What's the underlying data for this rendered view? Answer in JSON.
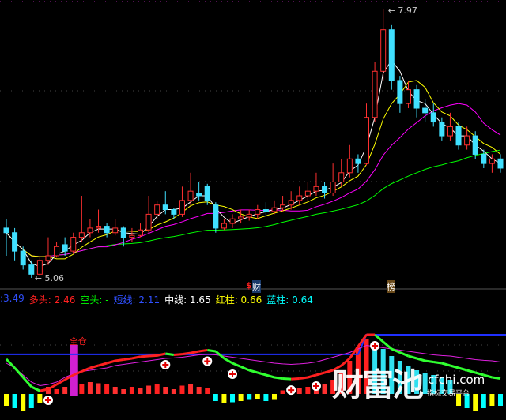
{
  "chart_data": {
    "type": "candlestick",
    "price_range": [
      5.06,
      7.97
    ],
    "max_label": "7.97",
    "min_label": "5.06",
    "candles": [
      [
        5.6,
        5.55,
        5.7,
        5.3
      ],
      [
        5.55,
        5.35,
        5.6,
        5.25
      ],
      [
        5.35,
        5.2,
        5.4,
        5.15
      ],
      [
        5.2,
        5.1,
        5.25,
        5.06
      ],
      [
        5.1,
        5.25,
        5.3,
        5.08
      ],
      [
        5.25,
        5.3,
        5.5,
        5.2
      ],
      [
        5.3,
        5.4,
        5.45,
        5.28
      ],
      [
        5.42,
        5.35,
        5.5,
        5.3
      ],
      [
        5.35,
        5.5,
        5.55,
        5.32
      ],
      [
        5.5,
        5.55,
        5.95,
        5.45
      ],
      [
        5.55,
        5.6,
        5.7,
        5.5
      ],
      [
        5.6,
        5.62,
        5.8,
        5.55
      ],
      [
        5.62,
        5.55,
        5.65,
        5.5
      ],
      [
        5.55,
        5.6,
        5.7,
        5.52
      ],
      [
        5.6,
        5.5,
        5.62,
        5.4
      ],
      [
        5.5,
        5.52,
        5.6,
        5.45
      ],
      [
        5.52,
        5.58,
        5.65,
        5.5
      ],
      [
        5.58,
        5.75,
        5.95,
        5.55
      ],
      [
        5.75,
        5.85,
        5.9,
        5.7
      ],
      [
        5.85,
        5.8,
        6.0,
        5.75
      ],
      [
        5.8,
        5.75,
        5.82,
        5.7
      ],
      [
        5.75,
        5.9,
        6.05,
        5.72
      ],
      [
        5.9,
        6.0,
        6.2,
        5.85
      ],
      [
        5.98,
        5.95,
        6.1,
        5.9
      ],
      [
        6.05,
        5.9,
        6.08,
        5.85
      ],
      [
        5.85,
        5.6,
        5.88,
        5.55
      ],
      [
        5.6,
        5.65,
        5.7,
        5.58
      ],
      [
        5.65,
        5.7,
        5.75,
        5.6
      ],
      [
        5.7,
        5.72,
        5.8,
        5.65
      ],
      [
        5.72,
        5.75,
        5.8,
        5.68
      ],
      [
        5.75,
        5.8,
        5.85,
        5.7
      ],
      [
        5.8,
        5.78,
        5.88,
        5.72
      ],
      [
        5.78,
        5.82,
        5.9,
        5.75
      ],
      [
        5.82,
        5.85,
        5.95,
        5.78
      ],
      [
        5.85,
        5.9,
        6.0,
        5.8
      ],
      [
        5.9,
        5.95,
        6.05,
        5.85
      ],
      [
        5.95,
        6.0,
        6.1,
        5.9
      ],
      [
        6.0,
        6.05,
        6.2,
        5.95
      ],
      [
        6.05,
        5.98,
        6.1,
        5.92
      ],
      [
        5.98,
        6.1,
        6.3,
        5.95
      ],
      [
        6.1,
        6.2,
        6.35,
        6.05
      ],
      [
        6.2,
        6.35,
        6.5,
        6.15
      ],
      [
        6.35,
        6.3,
        6.4,
        6.2
      ],
      [
        6.3,
        6.8,
        6.95,
        6.28
      ],
      [
        6.8,
        7.3,
        7.4,
        6.75
      ],
      [
        7.3,
        7.75,
        7.97,
        7.2
      ],
      [
        7.75,
        7.2,
        7.8,
        7.1
      ],
      [
        7.2,
        6.95,
        7.25,
        6.85
      ],
      [
        6.95,
        7.1,
        7.2,
        6.9
      ],
      [
        7.1,
        6.9,
        7.15,
        6.8
      ],
      [
        6.9,
        6.85,
        7.0,
        6.75
      ],
      [
        6.85,
        6.75,
        6.95,
        6.7
      ],
      [
        6.75,
        6.6,
        6.8,
        6.55
      ],
      [
        6.6,
        6.7,
        6.85,
        6.55
      ],
      [
        6.7,
        6.5,
        6.75,
        6.45
      ],
      [
        6.5,
        6.6,
        6.7,
        6.45
      ],
      [
        6.6,
        6.4,
        6.65,
        6.35
      ],
      [
        6.4,
        6.3,
        6.45,
        6.25
      ],
      [
        6.3,
        6.35,
        6.4,
        6.2
      ],
      [
        6.35,
        6.25,
        6.4,
        6.2
      ]
    ],
    "ma_colors": {
      "ma5": "#ffffff",
      "ma10": "#ffff00",
      "ma20": "#ff00ff",
      "ma60": "#00ff00"
    },
    "markers": [
      {
        "text": "$",
        "color": "#ff2020"
      },
      {
        "text": "财",
        "color": "#ffffff"
      },
      {
        "text": "榜",
        "color": "#ffffff"
      }
    ],
    "indicator": {
      "ylim": [
        0,
        4.4
      ],
      "blue_level": [
        2.77,
        2.77,
        3.6
      ],
      "main_line": [
        2.57,
        2.2,
        1.8,
        1.4,
        1.23,
        1.3,
        1.5,
        1.7,
        1.9,
        2.05,
        2.2,
        2.3,
        2.4,
        2.5,
        2.55,
        2.6,
        2.67,
        2.7,
        2.72,
        2.8,
        2.75,
        2.78,
        2.83,
        2.9,
        2.95,
        2.9,
        2.6,
        2.4,
        2.25,
        2.1,
        2.0,
        1.9,
        1.8,
        1.75,
        1.73,
        1.75,
        1.8,
        1.9,
        2.0,
        2.1,
        2.3,
        2.6,
        3.1,
        3.6,
        3.6,
        3.3,
        3.0,
        2.85,
        2.7,
        2.6,
        2.5,
        2.45,
        2.4,
        2.3,
        2.2,
        2.1,
        2.0,
        1.9,
        1.8,
        1.75
      ],
      "mid_line": [
        2.4,
        2.2,
        1.9,
        1.6,
        1.45,
        1.5,
        1.6,
        1.8,
        1.95,
        2.05,
        2.1,
        2.15,
        2.2,
        2.3,
        2.35,
        2.4,
        2.45,
        2.5,
        2.55,
        2.6,
        2.62,
        2.65,
        2.7,
        2.75,
        2.77,
        2.75,
        2.7,
        2.65,
        2.6,
        2.55,
        2.5,
        2.45,
        2.4,
        2.37,
        2.35,
        2.37,
        2.4,
        2.45,
        2.55,
        2.65,
        2.75,
        2.85,
        3.0,
        3.15,
        3.1,
        3.05,
        3.0,
        2.95,
        2.9,
        2.85,
        2.8,
        2.75,
        2.72,
        2.7,
        2.65,
        2.6,
        2.55,
        2.52,
        2.5,
        2.45
      ],
      "bars": [
        -0.5,
        -0.6,
        -0.7,
        -0.6,
        -0.4,
        0.3,
        0.2,
        0.3,
        0.35,
        0.4,
        0.5,
        0.45,
        0.4,
        0.3,
        0.2,
        0.3,
        0.25,
        0.35,
        0.4,
        0.3,
        0.2,
        0.35,
        0.4,
        0.3,
        0.25,
        -0.3,
        -0.4,
        -0.35,
        -0.3,
        -0.25,
        -0.2,
        -0.3,
        -0.25,
        0.15,
        0.2,
        0.25,
        0.3,
        0.35,
        0.4,
        0.6,
        0.9,
        1.4,
        2.0,
        2.3,
        2.2,
        1.9,
        1.6,
        1.4,
        1.2,
        1.0,
        0.9,
        0.8,
        0.7,
        0.6,
        -0.5,
        -0.6,
        -0.7,
        -0.6,
        -0.5,
        -0.5
      ],
      "full_position_label": "全仓",
      "plus_markers_at": [
        5,
        19,
        24,
        27,
        34,
        37,
        44
      ]
    }
  },
  "legend": [
    {
      "label": ":3.49",
      "color": "#3050ff"
    },
    {
      "label": "多头: 2.46",
      "color": "#ff2020"
    },
    {
      "label": "空头: -",
      "color": "#00ff00"
    },
    {
      "label": "短线: 2.11",
      "color": "#3050ff"
    },
    {
      "label": "中线: 1.65",
      "color": "#ffffff"
    },
    {
      "label": "红柱: 0.66",
      "color": "#ffff00"
    },
    {
      "label": "蓝柱: 0.64",
      "color": "#00ffff"
    }
  ],
  "watermark": {
    "name": "财富池",
    "domain": "cfchi.com",
    "slogan": "指标交易平台"
  }
}
